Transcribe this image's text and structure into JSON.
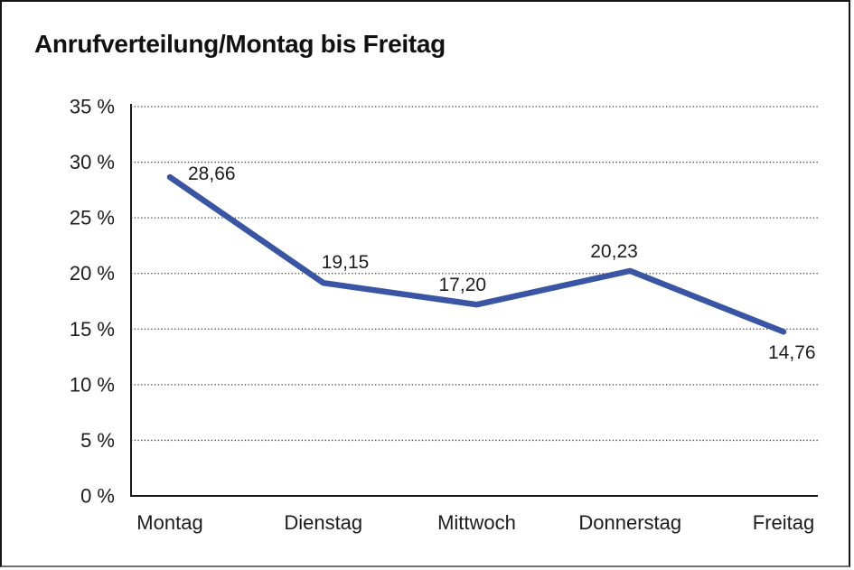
{
  "chart_data": {
    "type": "line",
    "title": "Anrufverteilung/Montag bis Freitag",
    "categories": [
      "Montag",
      "Dienstag",
      "Mittwoch",
      "Donnerstag",
      "Freitag"
    ],
    "series": [
      {
        "name": "Anrufverteilung",
        "values": [
          28.66,
          19.15,
          17.2,
          20.23,
          14.76
        ]
      }
    ],
    "data_labels": [
      "28,66",
      "19,15",
      "17,20",
      "20,23",
      "14,76"
    ],
    "y_tick_labels": [
      "0 %",
      "5 %",
      "10 %",
      "15 %",
      "20 %",
      "25 %",
      "30 %",
      "35 %"
    ],
    "ylim": [
      0,
      35
    ],
    "y_tick_step": 5,
    "xlabel": "",
    "ylabel": "",
    "grid": "horizontal-dotted",
    "legend": "none",
    "line_color": "#3A55A3",
    "axis_color": "#1a1a1a",
    "grid_color": "#3c3c3c"
  }
}
